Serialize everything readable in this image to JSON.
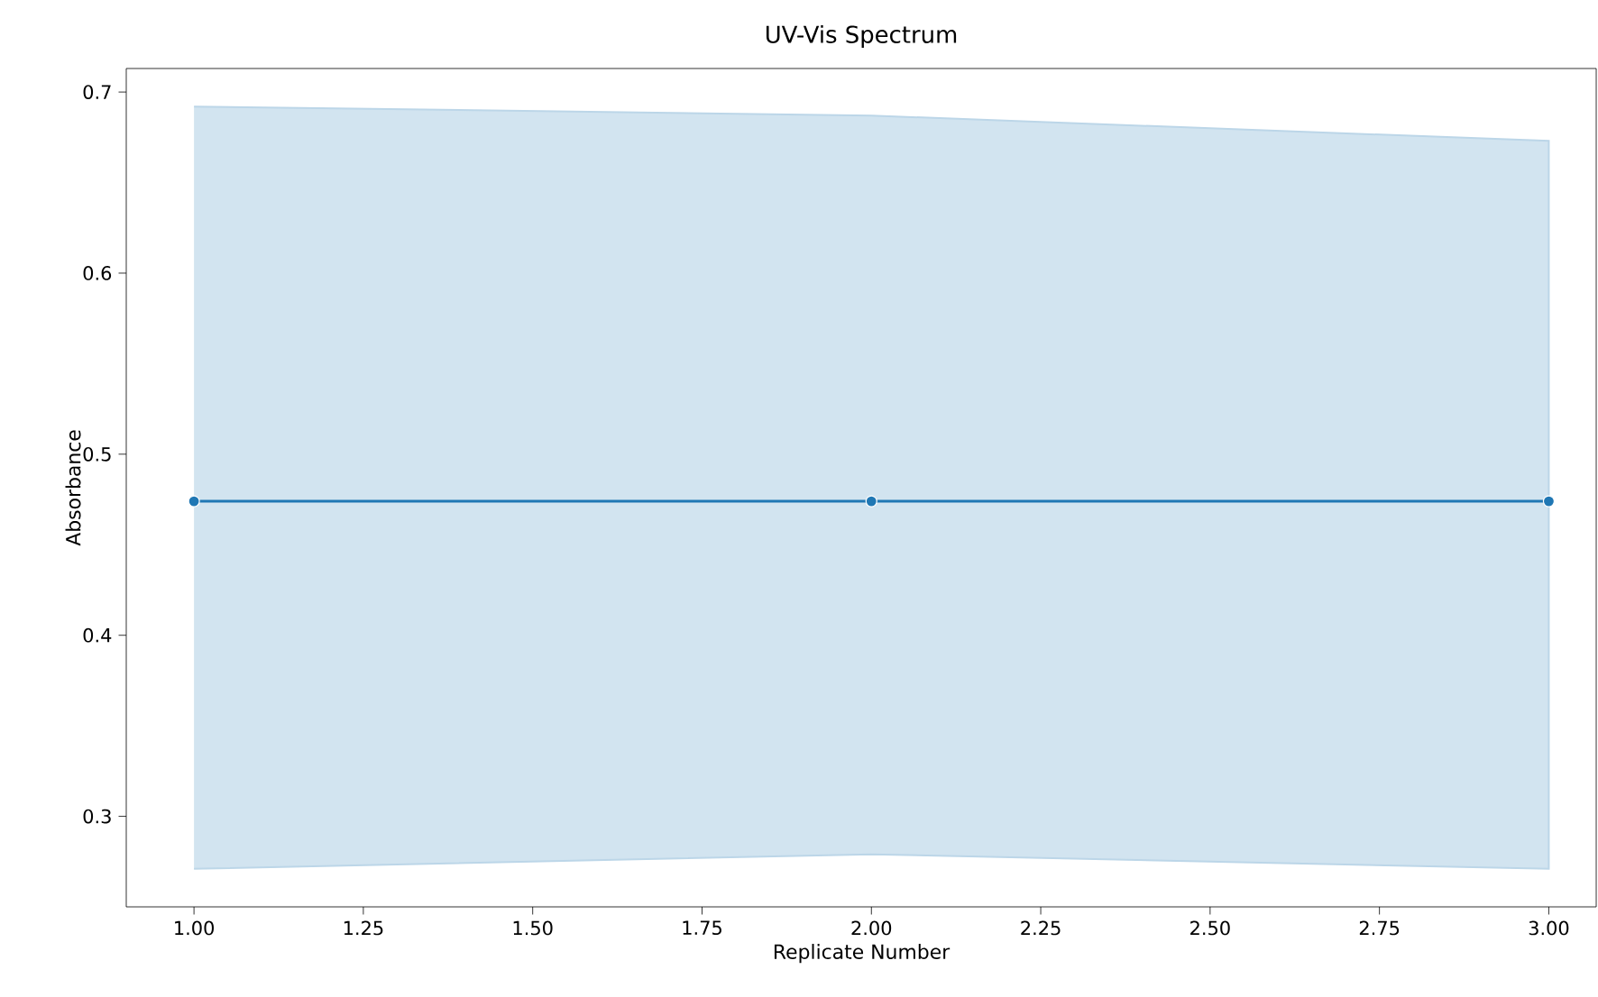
{
  "chart_data": {
    "type": "line",
    "title": "UV-Vis Spectrum",
    "xlabel": "Replicate Number",
    "ylabel": "Absorbance",
    "x": [
      1,
      2,
      3
    ],
    "series": [
      {
        "color": "#1f77b4",
        "values": [
          0.474,
          0.474,
          0.474
        ],
        "lower": [
          0.271,
          0.279,
          0.271
        ],
        "upper": [
          0.692,
          0.687,
          0.673
        ]
      }
    ],
    "marker": "circle",
    "line_style": "solid",
    "grid": false,
    "xlim": [
      0.9,
      3.07
    ],
    "ylim": [
      0.25,
      0.713
    ],
    "xticks": [
      {
        "value": 1,
        "label": "1.00"
      },
      {
        "value": 1.25,
        "label": "1.25"
      },
      {
        "value": 1.5,
        "label": "1.50"
      },
      {
        "value": 1.75,
        "label": "1.75"
      },
      {
        "value": 2,
        "label": "2.00"
      },
      {
        "value": 2.25,
        "label": "2.25"
      },
      {
        "value": 2.5,
        "label": "2.50"
      },
      {
        "value": 2.75,
        "label": "2.75"
      },
      {
        "value": 3,
        "label": "3.00"
      }
    ],
    "yticks": [
      0.3,
      0.4,
      0.5,
      0.6,
      0.7
    ]
  }
}
